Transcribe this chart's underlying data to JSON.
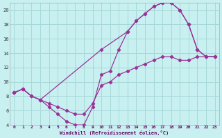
{
  "xlabel": "Windchill (Refroidissement éolien,°C)",
  "bg_color": "#c8f0f0",
  "grid_color": "#a8d8d8",
  "line_color": "#993399",
  "xlim": [
    -0.5,
    23.5
  ],
  "ylim": [
    4,
    21
  ],
  "xticks": [
    0,
    1,
    2,
    3,
    4,
    5,
    6,
    7,
    8,
    9,
    10,
    11,
    12,
    13,
    14,
    15,
    16,
    17,
    18,
    19,
    20,
    21,
    22,
    23
  ],
  "yticks": [
    4,
    6,
    8,
    10,
    12,
    14,
    16,
    18,
    20
  ],
  "line1_x": [
    0,
    1,
    2,
    3,
    4,
    5,
    6,
    7,
    8,
    9,
    10,
    11,
    12,
    13,
    14,
    15,
    16,
    17,
    18,
    19,
    20,
    21,
    22,
    23
  ],
  "line1_y": [
    8.5,
    9.0,
    8.0,
    7.5,
    6.5,
    5.5,
    4.5,
    4.0,
    4.0,
    6.5,
    11.0,
    11.5,
    14.5,
    17.0,
    18.5,
    19.5,
    20.5,
    21.0,
    21.0,
    20.0,
    18.0,
    14.5,
    13.5,
    13.5
  ],
  "line2_x": [
    0,
    1,
    2,
    3,
    4,
    5,
    6,
    7,
    8,
    9,
    10,
    11,
    12,
    13,
    14,
    15,
    16,
    17,
    18,
    19,
    20,
    21,
    22,
    23
  ],
  "line2_y": [
    8.5,
    9.0,
    8.0,
    7.5,
    7.0,
    6.5,
    6.0,
    5.5,
    5.5,
    7.0,
    9.5,
    10.0,
    11.0,
    11.5,
    12.0,
    12.5,
    13.0,
    13.5,
    13.5,
    13.0,
    13.0,
    13.5,
    13.5,
    13.5
  ],
  "line3_x": [
    0,
    1,
    2,
    3,
    10,
    13,
    14,
    15,
    16,
    17,
    18,
    19,
    20,
    21,
    22,
    23
  ],
  "line3_y": [
    8.5,
    9.0,
    8.0,
    7.5,
    14.5,
    17.0,
    18.5,
    19.5,
    20.5,
    21.0,
    21.0,
    20.0,
    18.0,
    14.5,
    13.5,
    13.5
  ]
}
